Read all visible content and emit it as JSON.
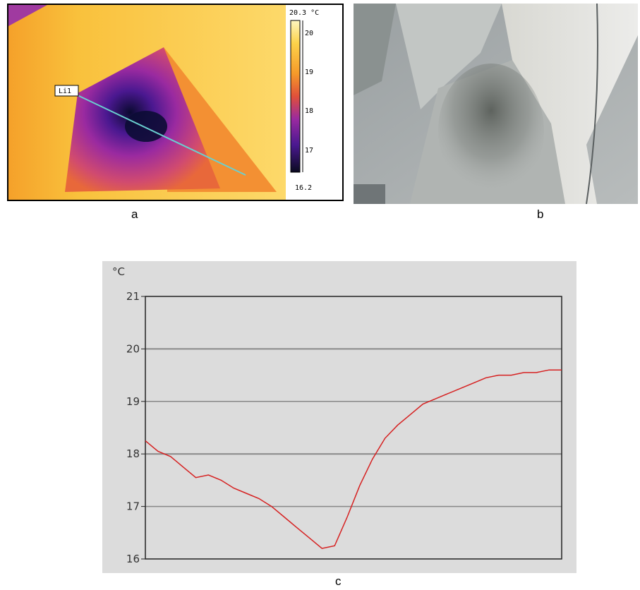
{
  "panels": {
    "a": {
      "caption": "a"
    },
    "b": {
      "caption": "b"
    },
    "c": {
      "caption": "c"
    }
  },
  "thermal": {
    "roi_label": "Li1",
    "scale_max_label": "20.3 °C",
    "scale_min_label": "16.2",
    "scale_ticks": [
      "20",
      "19",
      "18",
      "17"
    ],
    "palette": [
      "#0a0a30",
      "#4a1890",
      "#9a2aa0",
      "#e0503a",
      "#f59a2a",
      "#fbd24a",
      "#fdf0a0"
    ]
  },
  "chart_data": {
    "type": "line",
    "title": "",
    "xlabel": "",
    "ylabel": "°C",
    "ylim": [
      16,
      21
    ],
    "yticks": [
      "21",
      "20",
      "19",
      "18",
      "17",
      "16"
    ],
    "grid": true,
    "series": [
      {
        "color": "#d62020",
        "values": [
          18.25,
          18.05,
          17.95,
          17.75,
          17.55,
          17.6,
          17.5,
          17.35,
          17.25,
          17.15,
          17.0,
          16.8,
          16.6,
          16.4,
          16.2,
          16.25,
          16.8,
          17.4,
          17.9,
          18.3,
          18.55,
          18.75,
          18.95,
          19.05,
          19.15,
          19.25,
          19.35,
          19.45,
          19.5,
          19.5,
          19.55,
          19.55,
          19.6,
          19.6
        ]
      }
    ],
    "line_color": "#d62020",
    "grid_color": "#888888"
  }
}
